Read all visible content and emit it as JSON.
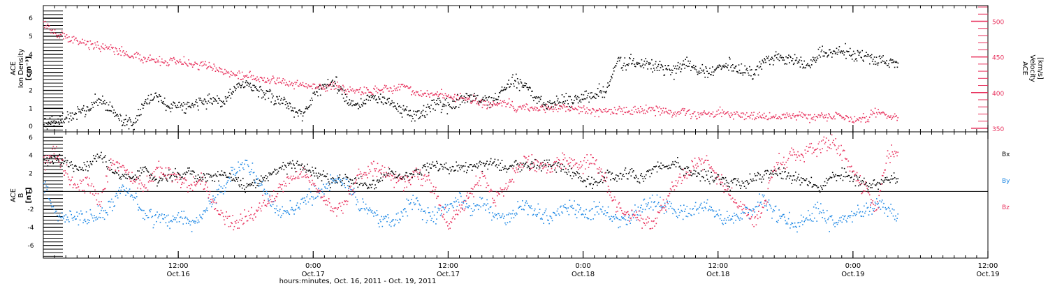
{
  "chart_data": [
    {
      "type": "scatter",
      "panel": "plasma",
      "ylabel_lines": [
        "ACE",
        "Ion Density",
        "[cm⁻³]"
      ],
      "ylim": [
        -0.3,
        6.7
      ],
      "yticks": [
        0,
        1,
        2,
        3,
        4,
        5,
        6
      ],
      "ylabel_right_lines": [
        "ACE",
        "Velocity",
        "[km/s]"
      ],
      "ylim_right": [
        345,
        522
      ],
      "yticks_right": [
        350,
        400,
        450,
        500
      ],
      "series": [
        {
          "label": "density",
          "axis": "left",
          "color": "#000000",
          "x_hours": [
            0,
            1,
            2,
            3,
            4,
            5,
            6,
            7,
            8,
            9,
            10,
            11,
            12,
            13,
            14,
            15,
            16,
            17,
            18,
            19,
            20,
            21,
            22,
            23,
            24,
            25,
            26,
            27,
            28,
            29,
            30,
            31,
            32,
            33,
            34,
            35,
            36,
            37,
            38,
            39,
            40,
            41,
            42,
            43,
            44,
            45,
            46,
            47,
            48,
            49,
            50,
            51,
            52,
            53,
            54,
            55,
            56,
            57,
            58,
            59,
            60,
            61,
            62,
            63,
            64,
            65,
            66,
            67,
            68,
            69,
            70,
            71,
            72,
            73,
            74,
            75,
            76
          ],
          "values": [
            0.2,
            0.3,
            0.5,
            0.8,
            1.0,
            1.6,
            1.0,
            0.3,
            0.2,
            1.3,
            1.8,
            1.0,
            1.2,
            1.1,
            1.4,
            1.5,
            1.3,
            2.2,
            2.5,
            2.0,
            1.8,
            1.5,
            1.0,
            0.6,
            1.8,
            2.5,
            2.4,
            1.5,
            1.2,
            1.6,
            1.5,
            1.4,
            0.8,
            0.7,
            1.0,
            1.3,
            1.2,
            1.5,
            1.7,
            1.4,
            1.4,
            2.2,
            2.6,
            2.2,
            1.4,
            1.2,
            1.5,
            1.4,
            1.6,
            1.8,
            2.1,
            3.5,
            3.6,
            3.5,
            3.4,
            3.3,
            3.1,
            3.6,
            3.2,
            3.0,
            3.3,
            3.4,
            3.1,
            3.0,
            3.6,
            3.8,
            3.7,
            3.6,
            3.4,
            4.2,
            4.0,
            4.2,
            4.0,
            3.9,
            3.8,
            3.6,
            3.5
          ]
        },
        {
          "label": "velocity",
          "axis": "right",
          "color": "#e8305c",
          "x_hours": [
            0,
            1,
            2,
            3,
            4,
            5,
            6,
            7,
            8,
            9,
            10,
            11,
            12,
            13,
            14,
            15,
            16,
            17,
            18,
            19,
            20,
            21,
            22,
            23,
            24,
            25,
            26,
            27,
            28,
            29,
            30,
            31,
            32,
            33,
            34,
            35,
            36,
            37,
            38,
            39,
            40,
            41,
            42,
            43,
            44,
            45,
            46,
            47,
            48,
            49,
            50,
            51,
            52,
            53,
            54,
            55,
            56,
            57,
            58,
            59,
            60,
            61,
            62,
            63,
            64,
            65,
            66,
            67,
            68,
            69,
            70,
            71,
            72,
            73,
            74,
            75,
            76
          ],
          "values": [
            500,
            485,
            478,
            472,
            468,
            466,
            462,
            458,
            452,
            448,
            446,
            444,
            445,
            440,
            440,
            436,
            430,
            426,
            424,
            420,
            418,
            416,
            414,
            412,
            410,
            408,
            412,
            405,
            404,
            402,
            406,
            405,
            412,
            400,
            398,
            400,
            396,
            394,
            390,
            385,
            382,
            386,
            380,
            380,
            378,
            377,
            380,
            378,
            376,
            375,
            375,
            376,
            374,
            376,
            377,
            374,
            372,
            374,
            370,
            370,
            372,
            372,
            371,
            368,
            368,
            366,
            368,
            370,
            366,
            368,
            368,
            366,
            363,
            364,
            372,
            368,
            365
          ]
        }
      ]
    },
    {
      "type": "scatter",
      "panel": "magnetic-field",
      "ylabel_lines": [
        "ACE",
        "B",
        "[nT]"
      ],
      "ylim": [
        -7.4,
        6.6
      ],
      "yticks": [
        -6,
        -4,
        -2,
        0,
        2,
        4,
        6
      ],
      "legend_placement": "right",
      "series": [
        {
          "name": "Bx",
          "color": "#000000",
          "x_hours": [
            0,
            1,
            2,
            3,
            4,
            5,
            6,
            7,
            8,
            9,
            10,
            11,
            12,
            13,
            14,
            15,
            16,
            17,
            18,
            19,
            20,
            21,
            22,
            23,
            24,
            25,
            26,
            27,
            28,
            29,
            30,
            31,
            32,
            33,
            34,
            35,
            36,
            37,
            38,
            39,
            40,
            41,
            42,
            43,
            44,
            45,
            46,
            47,
            48,
            49,
            50,
            51,
            52,
            53,
            54,
            55,
            56,
            57,
            58,
            59,
            60,
            61,
            62,
            63,
            64,
            65,
            66,
            67,
            68,
            69,
            70,
            71,
            72,
            73,
            74,
            75,
            76
          ],
          "values": [
            3.5,
            3.8,
            3.2,
            2.5,
            3.0,
            4.0,
            2.5,
            1.8,
            1.5,
            2.5,
            1.2,
            1.8,
            2.0,
            2.2,
            1.5,
            1.6,
            2.0,
            1.5,
            0.5,
            1.0,
            2.0,
            2.6,
            3.0,
            2.8,
            2.2,
            1.5,
            1.0,
            1.5,
            1.0,
            0.8,
            1.5,
            2.2,
            1.5,
            2.0,
            2.8,
            3.0,
            2.5,
            2.6,
            2.8,
            3.0,
            3.2,
            2.6,
            3.0,
            2.8,
            3.2,
            3.0,
            2.5,
            2.0,
            1.2,
            1.0,
            2.0,
            1.5,
            2.2,
            1.5,
            2.5,
            2.8,
            3.2,
            2.5,
            2.0,
            1.8,
            1.5,
            1.0,
            0.8,
            1.5,
            1.8,
            2.2,
            2.0,
            1.5,
            1.0,
            0.5,
            1.5,
            2.0,
            1.5,
            0.8,
            0.5,
            1.5,
            1.5
          ]
        },
        {
          "name": "By",
          "color": "#1e88e5",
          "x_hours": [
            0,
            1,
            2,
            3,
            4,
            5,
            6,
            7,
            8,
            9,
            10,
            11,
            12,
            13,
            14,
            15,
            16,
            17,
            18,
            19,
            20,
            21,
            22,
            23,
            24,
            25,
            26,
            27,
            28,
            29,
            30,
            31,
            32,
            33,
            34,
            35,
            36,
            37,
            38,
            39,
            40,
            41,
            42,
            43,
            44,
            45,
            46,
            47,
            48,
            49,
            50,
            51,
            52,
            53,
            54,
            55,
            56,
            57,
            58,
            59,
            60,
            61,
            62,
            63,
            64,
            65,
            66,
            67,
            68,
            69,
            70,
            71,
            72,
            73,
            74,
            75,
            76
          ],
          "values": [
            1.0,
            -2.5,
            -3.0,
            -2.8,
            -3.2,
            -2.5,
            -1.5,
            0.5,
            -0.5,
            -2.8,
            -3.0,
            -3.2,
            -2.8,
            -3.5,
            -3.0,
            -1.0,
            0.5,
            2.5,
            3.0,
            1.5,
            -1.0,
            -2.5,
            -2.0,
            -1.0,
            -0.5,
            0.5,
            1.5,
            0.5,
            -1.5,
            -2.0,
            -3.0,
            -3.5,
            -2.0,
            -1.0,
            -2.8,
            -2.5,
            -1.5,
            -0.5,
            -2.0,
            -1.0,
            -2.5,
            -3.0,
            -2.0,
            -1.5,
            -2.5,
            -3.0,
            -2.0,
            -1.5,
            -2.5,
            -2.0,
            -2.5,
            -3.0,
            -2.8,
            -2.0,
            -1.0,
            -1.5,
            -2.0,
            -2.5,
            -2.0,
            -1.5,
            -2.8,
            -3.0,
            -2.5,
            -2.0,
            -1.0,
            -2.5,
            -3.0,
            -4.0,
            -3.0,
            -2.0,
            -3.5,
            -3.0,
            -2.5,
            -2.0,
            -1.5,
            -2.0,
            -3.0
          ]
        },
        {
          "name": "Bz",
          "color": "#e8305c",
          "x_hours": [
            0,
            1,
            2,
            3,
            4,
            5,
            6,
            7,
            8,
            9,
            10,
            11,
            12,
            13,
            14,
            15,
            16,
            17,
            18,
            19,
            20,
            21,
            22,
            23,
            24,
            25,
            26,
            27,
            28,
            29,
            30,
            31,
            32,
            33,
            34,
            35,
            36,
            37,
            38,
            39,
            40,
            41,
            42,
            43,
            44,
            45,
            46,
            47,
            48,
            49,
            50,
            51,
            52,
            53,
            54,
            55,
            56,
            57,
            58,
            59,
            60,
            61,
            62,
            63,
            64,
            65,
            66,
            67,
            68,
            69,
            70,
            71,
            72,
            73,
            74,
            75,
            76
          ],
          "values": [
            3.0,
            4.5,
            2.0,
            0.5,
            1.0,
            -1.0,
            3.5,
            2.5,
            1.5,
            0.5,
            2.5,
            2.2,
            1.5,
            0.5,
            1.5,
            -1.0,
            -3.0,
            -3.5,
            -3.0,
            -2.0,
            -1.0,
            0.5,
            1.5,
            2.0,
            1.0,
            -1.0,
            -2.0,
            -1.0,
            2.0,
            2.5,
            2.5,
            1.5,
            1.0,
            2.0,
            1.5,
            -0.5,
            -3.5,
            -2.0,
            0.0,
            2.0,
            -1.0,
            0.5,
            2.5,
            3.5,
            3.0,
            2.5,
            3.5,
            3.5,
            3.0,
            3.5,
            1.0,
            -1.5,
            -2.5,
            -3.0,
            -4.0,
            -2.0,
            0.5,
            2.0,
            3.0,
            3.5,
            1.5,
            -0.5,
            -1.5,
            -3.0,
            -2.0,
            3.0,
            3.5,
            4.0,
            4.5,
            5.0,
            5.5,
            4.5,
            2.0,
            0.5,
            -2.0,
            4.0,
            4.5
          ]
        }
      ]
    }
  ],
  "x_axis": {
    "start": "2011-10-16 00:00",
    "xlim_hours": [
      0,
      84
    ],
    "minor_tick_step_hours": 1,
    "major_ticks": [
      {
        "hours": 12,
        "time": "12:00",
        "date": "Oct.16"
      },
      {
        "hours": 24,
        "time": "0:00",
        "date": "Oct.17"
      },
      {
        "hours": 36,
        "time": "12:00",
        "date": "Oct.17"
      },
      {
        "hours": 48,
        "time": "0:00",
        "date": "Oct.18"
      },
      {
        "hours": 60,
        "time": "12:00",
        "date": "Oct.18"
      },
      {
        "hours": 72,
        "time": "0:00",
        "date": "Oct.19"
      },
      {
        "hours": 84,
        "time": "12:00",
        "date": "Oct.19"
      }
    ],
    "xlabel": "hours:minutes, Oct. 16, 2011 - Oct. 19, 2011"
  }
}
